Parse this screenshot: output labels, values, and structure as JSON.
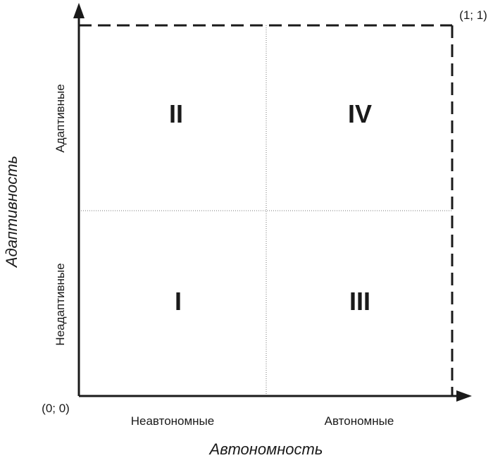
{
  "axes": {
    "x_title": "Автономность",
    "y_title": "Адаптивность",
    "origin_label": "(0; 0)",
    "corner_label": "(1; 1)"
  },
  "x_categories": [
    "Неавтономные",
    "Автономные"
  ],
  "y_categories": [
    "Неадаптивные",
    "Адаптивные"
  ],
  "quadrants": {
    "top_left": "II",
    "top_right": "IV",
    "bottom_left": "I",
    "bottom_right": "III"
  }
}
